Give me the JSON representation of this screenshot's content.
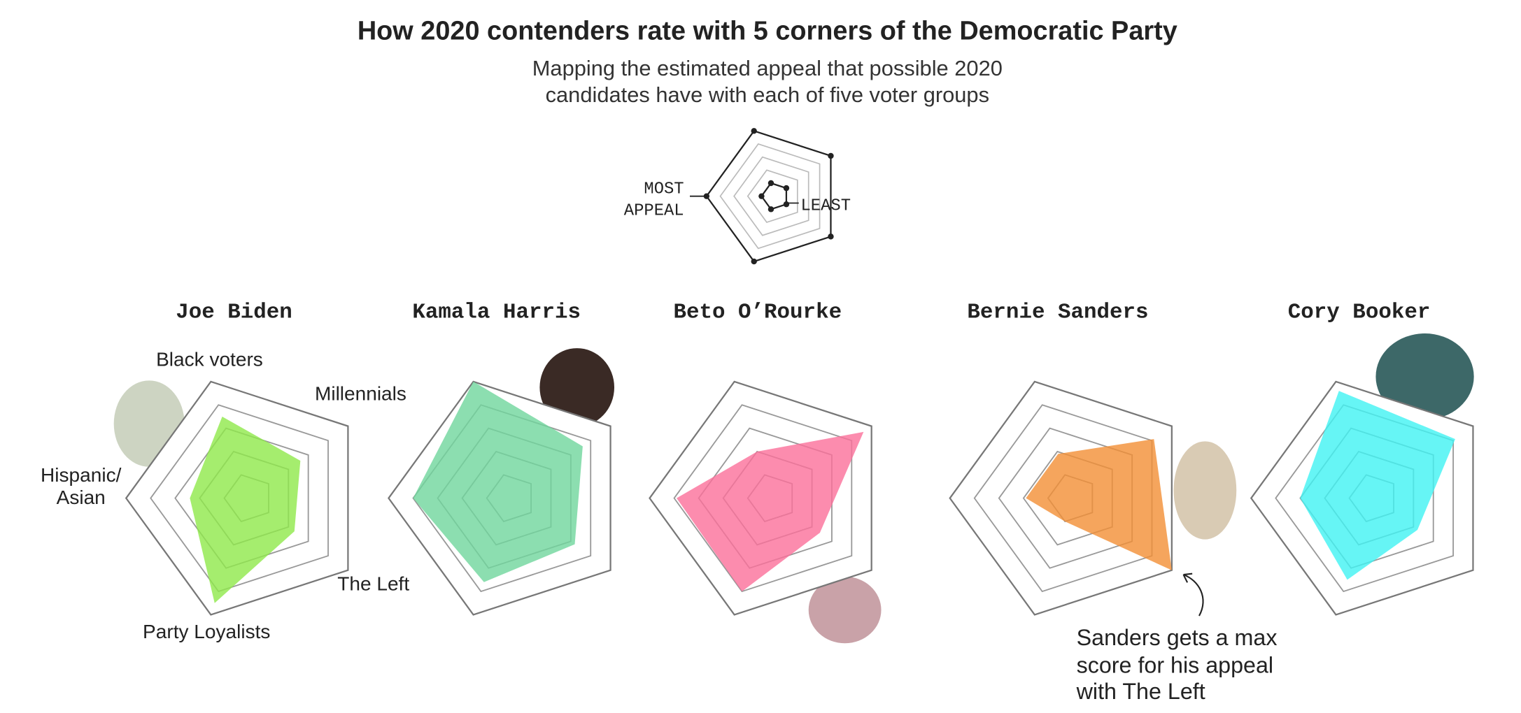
{
  "chart_data": {
    "type": "radar",
    "title": "How 2020 contenders rate with 5 corners of the Democratic Party",
    "subtitle": [
      "Mapping the estimated appeal that possible 2020",
      "candidates have with each of five voter groups"
    ],
    "axes": [
      [
        "Black voters"
      ],
      [
        "Millennials"
      ],
      [
        "The Left"
      ],
      [
        "Party Loyalists"
      ],
      [
        "Hispanic/",
        "Asian"
      ]
    ],
    "rlim": [
      0,
      5
    ],
    "rticks": [
      1,
      2,
      3,
      4,
      5
    ],
    "legend_labels": {
      "most": [
        "MOST",
        "APPEAL"
      ],
      "least": "LEAST"
    },
    "series": [
      {
        "name": "Joe Biden",
        "color": "#8fe84a",
        "values": [
          3.5,
          2.6,
          2.3,
          4.5,
          2.4
        ]
      },
      {
        "name": "Kamala Harris",
        "color": "#6fd69c",
        "values": [
          5,
          3.6,
          3.2,
          3.6,
          4
        ]
      },
      {
        "name": "Beto O’Rourke",
        "color": "#fb6f9a",
        "values": [
          2,
          4.6,
          2.4,
          4,
          3.9
        ]
      },
      {
        "name": "Bernie Sanders",
        "color": "#f38f34",
        "values": [
          1.9,
          4.1,
          5,
          1,
          1.9
        ]
      },
      {
        "name": "Cory Booker",
        "color": "#40f2f2",
        "values": [
          4.6,
          4.1,
          2.2,
          3.5,
          3
        ]
      }
    ],
    "annotation": [
      "Sanders gets a max",
      "score for his appeal",
      "with The Left"
    ]
  }
}
